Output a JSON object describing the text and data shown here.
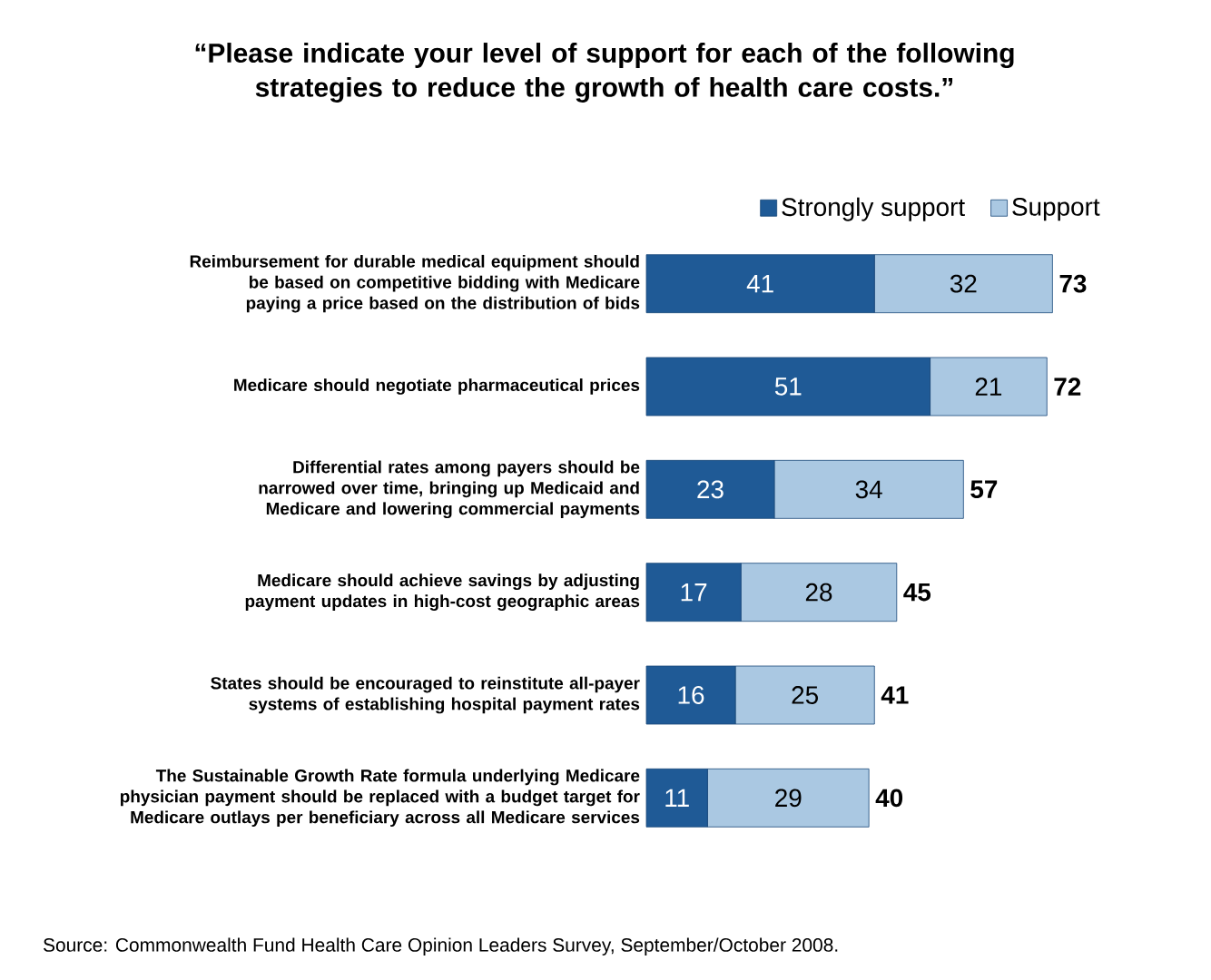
{
  "chart_data": {
    "type": "bar",
    "orientation": "horizontal",
    "stacked": true,
    "title": "“Please indicate your level of support for each of the following strategies to reduce the growth of health care costs.”",
    "categories": [
      "Reimbursement for durable medical equipment should be based on competitive bidding with Medicare paying a price based on the distribution of bids",
      "Medicare should negotiate pharmaceutical prices",
      "Differential rates among payers should be narrowed over time, bringing up Medicaid and Medicare and lowering commercial payments",
      "Medicare should achieve savings by adjusting payment updates in high-cost geographic areas",
      "States should be encouraged to reinstitute all-payer systems of establishing hospital payment rates",
      "The Sustainable Growth Rate formula underlying Medicare physician payment should be replaced with a budget target for Medicare outlays per beneficiary across all Medicare services"
    ],
    "series": [
      {
        "name": "Strongly support",
        "color": "#1f5a96",
        "values": [
          41,
          51,
          23,
          17,
          16,
          11
        ]
      },
      {
        "name": "Support",
        "color": "#aac8e2",
        "values": [
          32,
          21,
          34,
          28,
          25,
          29
        ]
      }
    ],
    "totals": [
      "73",
      "72",
      "57",
      "45",
      "41",
      "40"
    ],
    "data_labels": true,
    "legend": "top right",
    "annotations": [
      "Source: Commonwealth Fund Health Care Opinion Leaders Survey, September/October 2008."
    ]
  }
}
